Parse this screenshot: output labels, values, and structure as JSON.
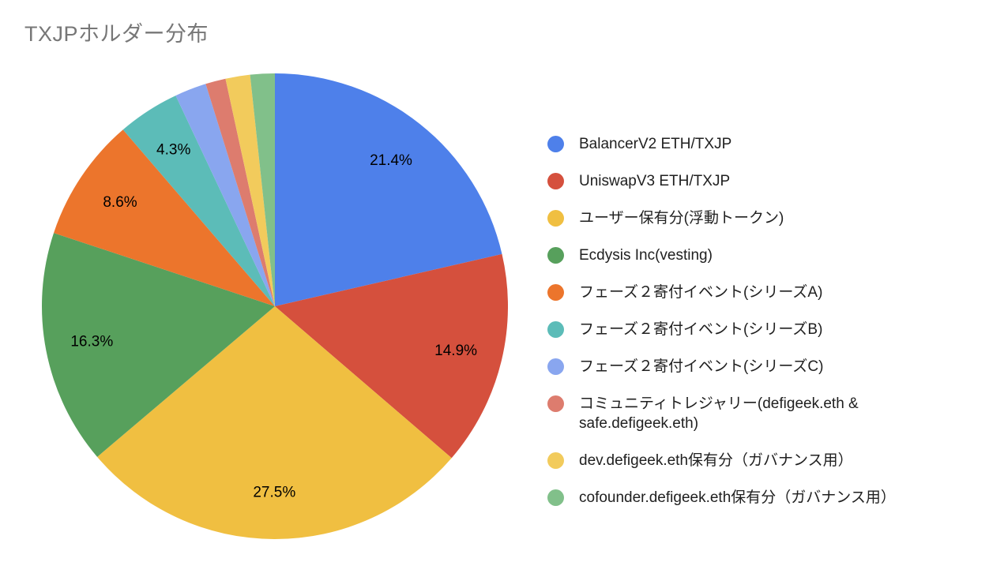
{
  "chart_data": {
    "type": "pie",
    "title": "TXJPホルダー分布",
    "title_color": "#777777",
    "legend_position": "right",
    "start_angle_deg": 0,
    "direction": "clockwise",
    "labels_shown_for_slices_at_least_percent": 4,
    "slices": [
      {
        "label": "BalancerV2 ETH/TXJP",
        "value": 21.4,
        "pct_label": "21.4%",
        "color": "#4E80EA"
      },
      {
        "label": "UniswapV3 ETH/TXJP",
        "value": 14.9,
        "pct_label": "14.9%",
        "color": "#D5503D"
      },
      {
        "label": "ユーザー保有分(浮動トークン)",
        "value": 27.5,
        "pct_label": "27.5%",
        "color": "#F0BF41"
      },
      {
        "label": "Ecdysis Inc(vesting)",
        "value": 16.3,
        "pct_label": "16.3%",
        "color": "#57A05C"
      },
      {
        "label": "フェーズ２寄付イベント(シリーズA)",
        "value": 8.6,
        "pct_label": "8.6%",
        "color": "#EC752C"
      },
      {
        "label": "フェーズ２寄付イベント(シリーズB)",
        "value": 4.3,
        "pct_label": "4.3%",
        "color": "#5CBCB8"
      },
      {
        "label": "フェーズ２寄付イベント(シリーズC)",
        "value": 2.2,
        "pct_label": null,
        "color": "#89A6EF"
      },
      {
        "label": "コミュニティトレジャリー(defigeek.eth & safe.defigeek.eth)",
        "value": 1.4,
        "pct_label": null,
        "color": "#DD7C6E"
      },
      {
        "label": "dev.defigeek.eth保有分（ガバナンス用）",
        "value": 1.7,
        "pct_label": null,
        "color": "#F2CB5C"
      },
      {
        "label": "cofounder.defigeek.eth保有分（ガバナンス用）",
        "value": 1.7,
        "pct_label": null,
        "color": "#81C08A"
      }
    ]
  }
}
